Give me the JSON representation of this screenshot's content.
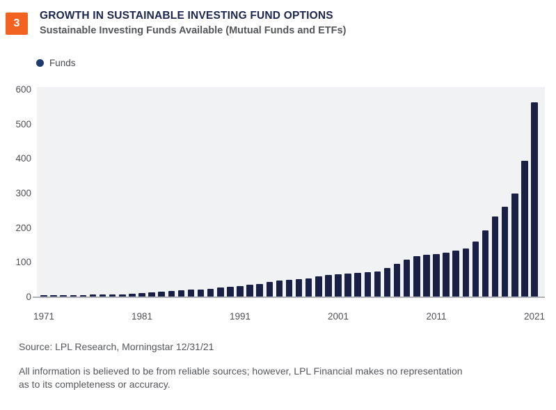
{
  "page": {
    "badge": "3"
  },
  "header": {
    "title": "GROWTH IN SUSTAINABLE INVESTING FUND OPTIONS",
    "subtitle": "Sustainable Investing Funds Available (Mutual Funds and ETFs)"
  },
  "legend": {
    "label": "Funds",
    "dot_color": "#1E3C6D"
  },
  "chart_data": {
    "type": "bar",
    "title": "Sustainable Investing Funds Available (Mutual Funds and ETFs)",
    "series_name": "Funds",
    "x": [
      1971,
      1972,
      1973,
      1974,
      1975,
      1976,
      1977,
      1978,
      1979,
      1980,
      1981,
      1982,
      1983,
      1984,
      1985,
      1986,
      1987,
      1988,
      1989,
      1990,
      1991,
      1992,
      1993,
      1994,
      1995,
      1996,
      1997,
      1998,
      1999,
      2000,
      2001,
      2002,
      2003,
      2004,
      2005,
      2006,
      2007,
      2008,
      2009,
      2010,
      2011,
      2012,
      2013,
      2014,
      2015,
      2016,
      2017,
      2018,
      2019,
      2020,
      2021
    ],
    "values": [
      5,
      5,
      5,
      5,
      5,
      6,
      6,
      7,
      7,
      8,
      10,
      13,
      15,
      16,
      18,
      20,
      21,
      23,
      26,
      28,
      31,
      35,
      37,
      43,
      46,
      49,
      51,
      53,
      58,
      62,
      65,
      67,
      69,
      71,
      73,
      82,
      94,
      107,
      116,
      120,
      123,
      127,
      133,
      139,
      160,
      192,
      232,
      260,
      298,
      393,
      561
    ],
    "xlabel": "",
    "ylabel": "",
    "xticks": [
      1971,
      1981,
      1991,
      2001,
      2011,
      2021
    ],
    "yticks": [
      0,
      100,
      200,
      300,
      400,
      500,
      600
    ],
    "ylim": [
      0,
      600
    ],
    "grid": false,
    "legend_position": "top-left",
    "bar_color": "#1A2045",
    "plot_bg": "#F0F2F4",
    "axis_line_color": "#AFB2B7"
  },
  "footer": {
    "source": "Source: LPL Research, Morningstar  12/31/21",
    "disclaimer_lines": [
      "All information is believed to be from reliable sources; however, LPL Financial makes no representation",
      "as to its completeness or accuracy."
    ]
  },
  "colors": {
    "accent_orange": "#F26322",
    "title_navy": "#1B2550",
    "text_gray": "#55565A"
  }
}
